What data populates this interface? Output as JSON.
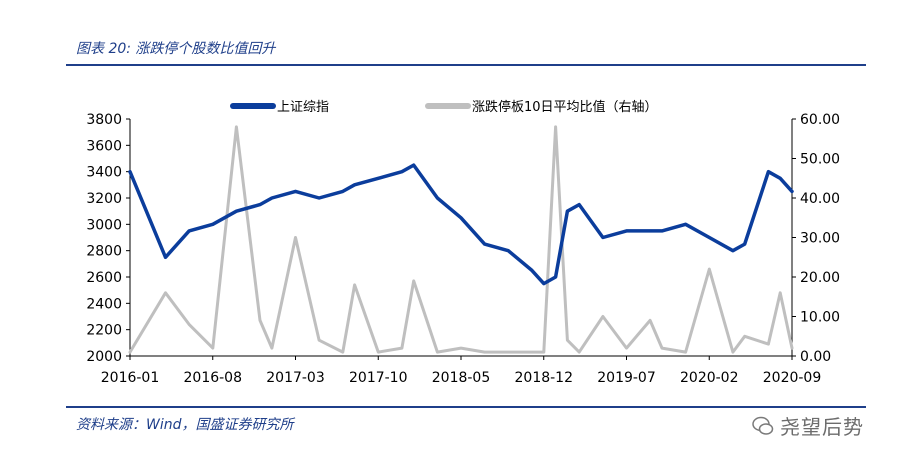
{
  "header": {
    "title": "图表 20:  涨跌停个股数比值回升"
  },
  "footer": {
    "source": "资料来源：Wind，国盛证券研究所"
  },
  "watermark": {
    "text": "尧望后势",
    "icon": "wechat-icon"
  },
  "colors": {
    "index_line": "#0b3d9c",
    "ratio_line": "#bfbfbf",
    "rule": "#1f3f8a"
  },
  "chart_data": {
    "type": "line",
    "legend_position": "top",
    "grid": false,
    "x": [
      "2016-01",
      "2016-04",
      "2016-06",
      "2016-08",
      "2016-10",
      "2016-12",
      "2017-01",
      "2017-03",
      "2017-05",
      "2017-07",
      "2017-08",
      "2017-10",
      "2017-12",
      "2018-01",
      "2018-03",
      "2018-05",
      "2018-07",
      "2018-09",
      "2018-11",
      "2018-12",
      "2019-01",
      "2019-02",
      "2019-03",
      "2019-05",
      "2019-07",
      "2019-09",
      "2019-10",
      "2019-12",
      "2020-02",
      "2020-04",
      "2020-05",
      "2020-07",
      "2020-08",
      "2020-09"
    ],
    "x_tick_labels": [
      "2016-01",
      "2016-08",
      "2017-03",
      "2017-10",
      "2018-05",
      "2018-12",
      "2019-07",
      "2020-02",
      "2020-09"
    ],
    "y_left": {
      "min": 2000,
      "max": 3800,
      "ticks": [
        "2000",
        "2200",
        "2400",
        "2600",
        "2800",
        "3000",
        "3200",
        "3400",
        "3600",
        "3800"
      ]
    },
    "y_right": {
      "min": 0,
      "max": 60,
      "ticks": [
        "0.00",
        "10.00",
        "20.00",
        "30.00",
        "40.00",
        "50.00",
        "60.00"
      ]
    },
    "series": [
      {
        "name": "上证综指",
        "axis": "left",
        "values": [
          3400,
          2750,
          2950,
          3000,
          3100,
          3150,
          3200,
          3250,
          3200,
          3250,
          3300,
          3350,
          3400,
          3450,
          3200,
          3050,
          2850,
          2800,
          2650,
          2550,
          2600,
          3100,
          3150,
          2900,
          2950,
          2950,
          2950,
          3000,
          2900,
          2800,
          2850,
          3400,
          3350,
          3250
        ]
      },
      {
        "name": "涨跌停板10日平均比值（右轴）",
        "axis": "right",
        "values": [
          1,
          16,
          8,
          2,
          58,
          9,
          2,
          30,
          4,
          1,
          18,
          1,
          2,
          19,
          1,
          2,
          1,
          1,
          1,
          1,
          58,
          4,
          1,
          10,
          2,
          9,
          2,
          1,
          22,
          1,
          5,
          3,
          16,
          2
        ]
      }
    ]
  }
}
